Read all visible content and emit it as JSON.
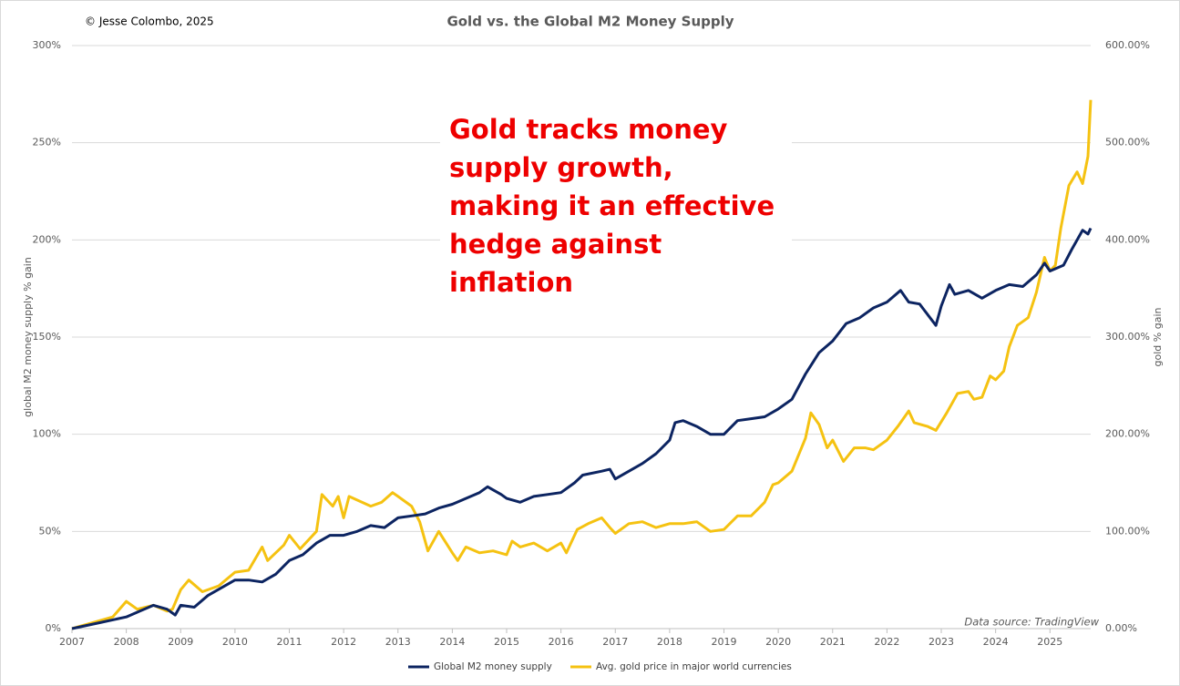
{
  "chart_data": {
    "type": "line",
    "title": "Gold vs. the Global M2 Money Supply",
    "copyright": "© Jesse Colombo, 2025",
    "annotation": "Gold tracks money supply growth, making it an effective hedge against inflation",
    "source": "Data source: TradingView",
    "ylabel": "global M2 money supply % gain",
    "y2label": "gold % gain",
    "xlim": [
      2007,
      2025.75
    ],
    "xticks": [
      2007,
      2008,
      2009,
      2010,
      2011,
      2012,
      2013,
      2014,
      2015,
      2016,
      2017,
      2018,
      2019,
      2020,
      2021,
      2022,
      2023,
      2024,
      2025
    ],
    "ylim": [
      0,
      300
    ],
    "yticks": [
      {
        "value": 0,
        "label": "0%"
      },
      {
        "value": 50,
        "label": "50%"
      },
      {
        "value": 100,
        "label": "100%"
      },
      {
        "value": 150,
        "label": "150%"
      },
      {
        "value": 200,
        "label": "200%"
      },
      {
        "value": 250,
        "label": "250%"
      },
      {
        "value": 300,
        "label": "300%"
      }
    ],
    "y2lim": [
      0,
      600
    ],
    "y2ticks": [
      {
        "value": 0,
        "label": "0.00%"
      },
      {
        "value": 100,
        "label": "100.00%"
      },
      {
        "value": 200,
        "label": "200.00%"
      },
      {
        "value": 300,
        "label": "300.00%"
      },
      {
        "value": 400,
        "label": "400.00%"
      },
      {
        "value": 500,
        "label": "500.00%"
      },
      {
        "value": 600,
        "label": "600.00%"
      }
    ],
    "grid": true,
    "legend": "bottom",
    "series": [
      {
        "name": "Global M2 money supply",
        "color": "#0c2461",
        "x": [
          2007.0,
          2007.5,
          2008.0,
          2008.25,
          2008.5,
          2008.75,
          2008.9,
          2009.0,
          2009.25,
          2009.5,
          2009.75,
          2010.0,
          2010.25,
          2010.5,
          2010.75,
          2011.0,
          2011.25,
          2011.5,
          2011.75,
          2012.0,
          2012.25,
          2012.5,
          2012.75,
          2013.0,
          2013.25,
          2013.5,
          2013.75,
          2014.0,
          2014.25,
          2014.5,
          2014.65,
          2014.9,
          2015.0,
          2015.25,
          2015.5,
          2015.75,
          2016.0,
          2016.25,
          2016.4,
          2016.75,
          2016.9,
          2017.0,
          2017.25,
          2017.5,
          2017.75,
          2018.0,
          2018.1,
          2018.25,
          2018.5,
          2018.75,
          2019.0,
          2019.25,
          2019.5,
          2019.75,
          2020.0,
          2020.25,
          2020.5,
          2020.75,
          2021.0,
          2021.25,
          2021.5,
          2021.75,
          2022.0,
          2022.25,
          2022.4,
          2022.6,
          2022.9,
          2023.0,
          2023.15,
          2023.25,
          2023.5,
          2023.75,
          2024.0,
          2024.25,
          2024.5,
          2024.75,
          2024.9,
          2025.0,
          2025.25,
          2025.4,
          2025.6,
          2025.7,
          2025.75
        ],
        "values": [
          0,
          3,
          6,
          9,
          12,
          10,
          7,
          12,
          11,
          17,
          21,
          25,
          25,
          24,
          28,
          35,
          38,
          44,
          48,
          48,
          50,
          53,
          52,
          57,
          58,
          59,
          62,
          64,
          67,
          70,
          73,
          69,
          67,
          65,
          68,
          69,
          70,
          75,
          79,
          81,
          82,
          77,
          81,
          85,
          90,
          97,
          106,
          107,
          104,
          100,
          100,
          107,
          108,
          109,
          113,
          118,
          131,
          142,
          148,
          157,
          160,
          165,
          168,
          174,
          168,
          167,
          156,
          166,
          177,
          172,
          174,
          170,
          174,
          177,
          176,
          182,
          188,
          184,
          187,
          195,
          205,
          203,
          206
        ]
      },
      {
        "name": "Avg. gold price in major world currencies",
        "color": "#f5c211",
        "axis": "y2",
        "x": [
          2007.0,
          2007.5,
          2007.75,
          2008.0,
          2008.2,
          2008.5,
          2008.75,
          2008.85,
          2009.0,
          2009.15,
          2009.4,
          2009.7,
          2010.0,
          2010.25,
          2010.5,
          2010.6,
          2010.9,
          2011.0,
          2011.2,
          2011.5,
          2011.6,
          2011.8,
          2011.9,
          2012.0,
          2012.1,
          2012.5,
          2012.7,
          2012.9,
          2013.0,
          2013.25,
          2013.4,
          2013.55,
          2013.75,
          2014.0,
          2014.1,
          2014.25,
          2014.5,
          2014.75,
          2015.0,
          2015.1,
          2015.25,
          2015.5,
          2015.75,
          2016.0,
          2016.1,
          2016.3,
          2016.5,
          2016.75,
          2016.9,
          2017.0,
          2017.25,
          2017.5,
          2017.75,
          2018.0,
          2018.25,
          2018.5,
          2018.75,
          2019.0,
          2019.25,
          2019.5,
          2019.75,
          2019.9,
          2020.0,
          2020.25,
          2020.5,
          2020.6,
          2020.75,
          2020.9,
          2021.0,
          2021.2,
          2021.4,
          2021.6,
          2021.75,
          2022.0,
          2022.2,
          2022.4,
          2022.5,
          2022.75,
          2022.9,
          2023.1,
          2023.3,
          2023.5,
          2023.6,
          2023.75,
          2023.9,
          2024.0,
          2024.15,
          2024.25,
          2024.4,
          2024.6,
          2024.75,
          2024.9,
          2025.0,
          2025.1,
          2025.2,
          2025.35,
          2025.5,
          2025.6,
          2025.7,
          2025.75
        ],
        "values": [
          0,
          8,
          12,
          28,
          20,
          24,
          18,
          20,
          40,
          50,
          38,
          44,
          58,
          60,
          84,
          70,
          86,
          96,
          82,
          100,
          138,
          126,
          136,
          114,
          136,
          126,
          130,
          140,
          136,
          126,
          110,
          80,
          100,
          78,
          70,
          84,
          78,
          80,
          76,
          90,
          84,
          88,
          80,
          88,
          78,
          102,
          108,
          114,
          104,
          98,
          108,
          110,
          104,
          108,
          108,
          110,
          100,
          102,
          116,
          116,
          130,
          148,
          150,
          162,
          196,
          222,
          210,
          186,
          194,
          172,
          186,
          186,
          184,
          194,
          208,
          224,
          212,
          208,
          204,
          222,
          242,
          244,
          236,
          238,
          260,
          256,
          265,
          290,
          312,
          320,
          346,
          382,
          368,
          374,
          412,
          456,
          470,
          458,
          486,
          544
        ]
      }
    ]
  }
}
